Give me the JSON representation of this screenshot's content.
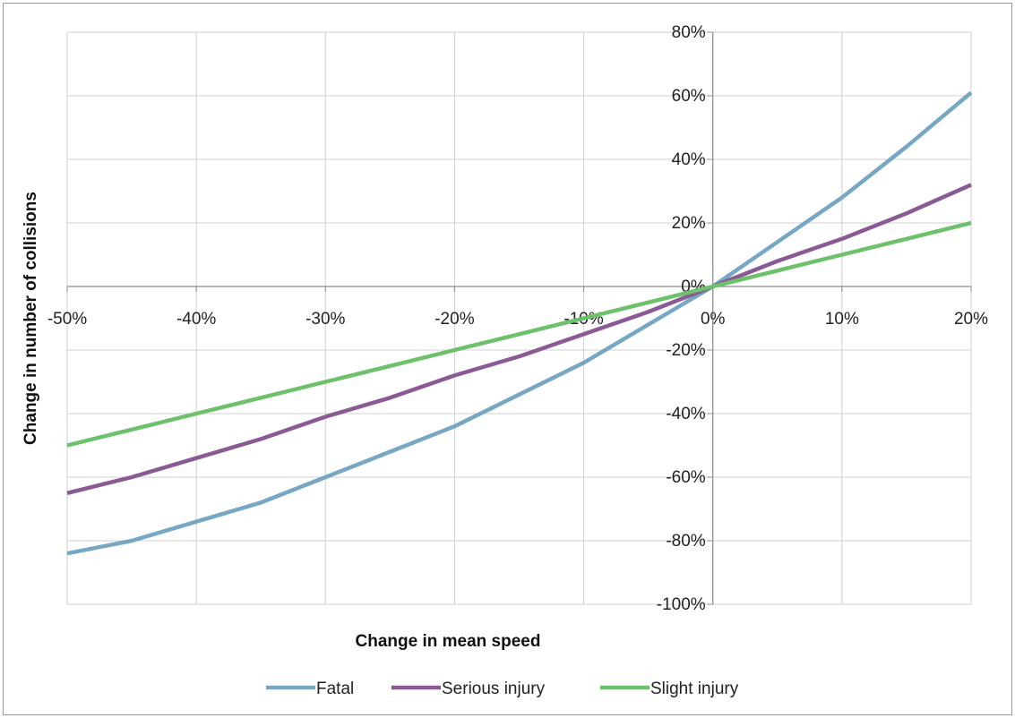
{
  "chart_data": {
    "type": "line",
    "title": "",
    "xlabel": "Change in mean speed",
    "ylabel": "Change in number of collisions",
    "xlim": [
      -0.5,
      0.2
    ],
    "ylim": [
      -1.0,
      0.8
    ],
    "x_ticks": [
      -0.5,
      -0.4,
      -0.3,
      -0.2,
      -0.1,
      0,
      0.1,
      0.2
    ],
    "x_tick_labels": [
      "-50%",
      "-40%",
      "-30%",
      "-20%",
      "-10%",
      "0%",
      "10%",
      "20%"
    ],
    "y_ticks": [
      0.8,
      0.6,
      0.4,
      0.2,
      0,
      -0.2,
      -0.4,
      -0.6,
      -0.8,
      -1.0
    ],
    "y_tick_labels": [
      "80%",
      "60%",
      "40%",
      "20%",
      "0%",
      "-20%",
      "-40%",
      "-60%",
      "-80%",
      "-100%"
    ],
    "grid": true,
    "legend_position": "bottom",
    "x": [
      -0.5,
      -0.45,
      -0.4,
      -0.35,
      -0.3,
      -0.25,
      -0.2,
      -0.15,
      -0.1,
      -0.05,
      0,
      0.05,
      0.1,
      0.15,
      0.2
    ],
    "series": [
      {
        "name": "Fatal",
        "color": "#77a7c3",
        "values": [
          -0.84,
          -0.8,
          -0.74,
          -0.68,
          -0.6,
          -0.52,
          -0.44,
          -0.34,
          -0.24,
          -0.12,
          0,
          0.14,
          0.28,
          0.44,
          0.61
        ]
      },
      {
        "name": "Serious injury",
        "color": "#8a5a95",
        "values": [
          -0.65,
          -0.6,
          -0.54,
          -0.48,
          -0.41,
          -0.35,
          -0.28,
          -0.22,
          -0.15,
          -0.08,
          0,
          0.08,
          0.15,
          0.23,
          0.32
        ]
      },
      {
        "name": "Slight injury",
        "color": "#6cc16a",
        "values": [
          -0.5,
          -0.45,
          -0.4,
          -0.35,
          -0.3,
          -0.25,
          -0.2,
          -0.15,
          -0.1,
          -0.05,
          0,
          0.05,
          0.1,
          0.15,
          0.2
        ]
      }
    ]
  }
}
